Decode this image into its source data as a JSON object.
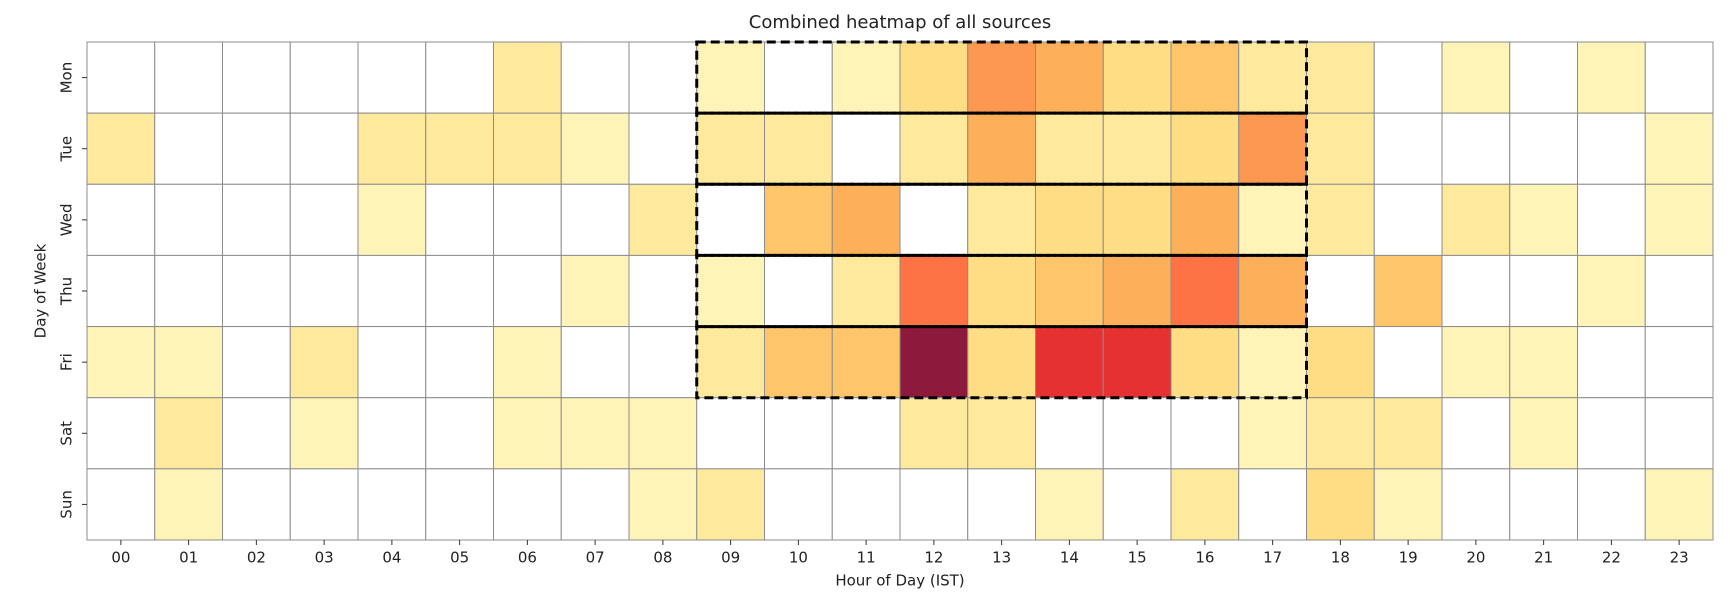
{
  "chart_data": {
    "type": "heatmap",
    "title": "Combined heatmap of all sources",
    "x_label": "Hour of Day (IST)",
    "y_label": "Day of Week",
    "categories": [
      "00",
      "01",
      "02",
      "03",
      "04",
      "05",
      "06",
      "07",
      "08",
      "09",
      "10",
      "11",
      "12",
      "13",
      "14",
      "15",
      "16",
      "17",
      "18",
      "19",
      "20",
      "21",
      "22",
      "23"
    ],
    "rows": [
      "Mon",
      "Tue",
      "Wed",
      "Thu",
      "Fri",
      "Sat",
      "Sun"
    ],
    "values": [
      [
        0,
        0,
        0,
        0,
        0,
        0,
        2,
        0,
        0,
        1,
        0,
        1,
        3,
        6,
        5,
        3,
        4,
        2,
        2,
        0,
        1,
        0,
        1,
        0
      ],
      [
        2,
        0,
        0,
        0,
        2,
        2,
        2,
        1,
        0,
        2,
        2,
        0,
        2,
        5,
        2,
        2,
        3,
        6,
        2,
        0,
        0,
        0,
        0,
        1
      ],
      [
        0,
        0,
        0,
        0,
        1,
        0,
        0,
        0,
        2,
        0,
        4,
        5,
        0,
        2,
        3,
        3,
        5,
        1,
        2,
        0,
        2,
        1,
        0,
        1
      ],
      [
        0,
        0,
        0,
        0,
        0,
        0,
        0,
        1,
        0,
        1,
        0,
        2,
        7,
        3,
        4,
        5,
        7,
        5,
        0,
        4,
        0,
        0,
        1,
        0
      ],
      [
        1,
        1,
        0,
        2,
        0,
        0,
        1,
        0,
        0,
        2,
        4,
        4,
        12,
        3,
        9,
        9,
        3,
        1,
        3,
        0,
        1,
        1,
        0,
        0
      ],
      [
        0,
        2,
        0,
        1,
        0,
        0,
        1,
        1,
        1,
        0,
        0,
        0,
        2,
        2,
        0,
        0,
        0,
        1,
        2,
        2,
        0,
        1,
        0,
        0
      ],
      [
        0,
        1,
        0,
        0,
        0,
        0,
        0,
        0,
        1,
        2,
        0,
        0,
        0,
        0,
        1,
        0,
        2,
        0,
        3,
        1,
        0,
        0,
        0,
        1
      ]
    ],
    "cmap": "YlOrRd",
    "grid_color": "#8c8c8c",
    "highlight_days": [
      "Mon",
      "Tue",
      "Wed",
      "Thu",
      "Fri"
    ],
    "highlight_hours": [
      "09",
      "17"
    ]
  }
}
